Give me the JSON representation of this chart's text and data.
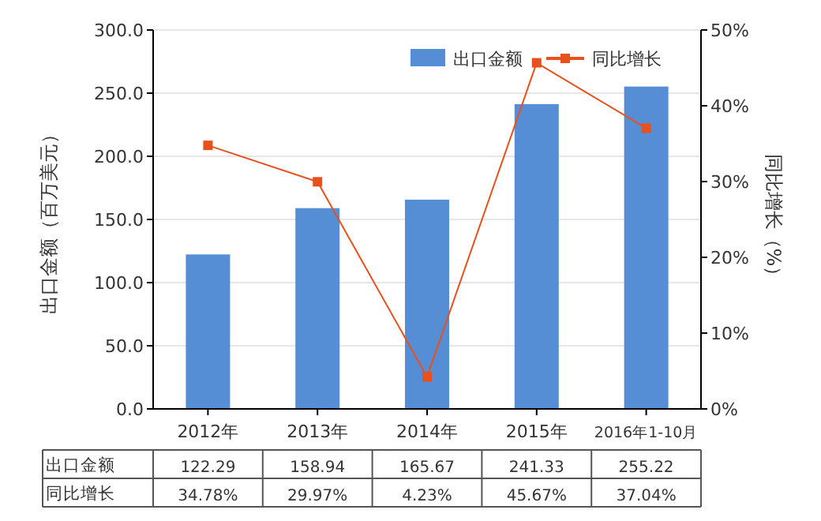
{
  "chart_data": {
    "type": "bar",
    "ylabel": "出口金额（百万美元）",
    "y2label": "同比增长（%）",
    "categories": [
      "2012年",
      "2013年",
      "2014年",
      "2015年",
      "2016年1-10月"
    ],
    "series": [
      {
        "name": "出口金额",
        "color": "#558ed5",
        "values": [
          122.29,
          158.94,
          165.67,
          241.33,
          255.22
        ],
        "value_labels": [
          "122.29",
          "158.94",
          "165.67",
          "241.33",
          "255.22"
        ]
      },
      {
        "name": "同比增长",
        "type": "line",
        "axis": "y2",
        "color": "#e8501c",
        "marker": "square",
        "values": [
          34.78,
          29.97,
          4.23,
          45.67,
          37.04
        ],
        "value_labels": [
          "34.78%",
          "29.97%",
          "4.23%",
          "45.67%",
          "37.04%"
        ]
      }
    ],
    "ylim": [
      0,
      300
    ],
    "yticks": [
      {
        "value": 0,
        "label": "0.0"
      },
      {
        "value": 50,
        "label": "50.0"
      },
      {
        "value": 100,
        "label": "100.0"
      },
      {
        "value": 150,
        "label": "150.0"
      },
      {
        "value": 200,
        "label": "200.0"
      },
      {
        "value": 250,
        "label": "250.0"
      },
      {
        "value": 300,
        "label": "300.0"
      }
    ],
    "y2lim": [
      0,
      50
    ],
    "y2ticks": [
      {
        "value": 0,
        "label": "0%"
      },
      {
        "value": 10,
        "label": "10%"
      },
      {
        "value": 20,
        "label": "20%"
      },
      {
        "value": 30,
        "label": "30%"
      },
      {
        "value": 40,
        "label": "40%"
      },
      {
        "value": 50,
        "label": "50%"
      }
    ],
    "grid": "y",
    "legend": "top right"
  }
}
